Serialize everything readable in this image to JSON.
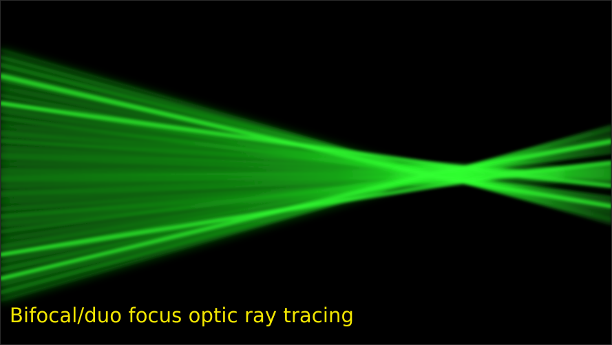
{
  "caption": {
    "text": "Bifocal/duo focus optic ray tracing",
    "color": "#f2e600"
  },
  "image": {
    "subject": "green laser ray bundles converging to two focal points",
    "background_color": "#000000",
    "beam_color": "#22ff22"
  }
}
